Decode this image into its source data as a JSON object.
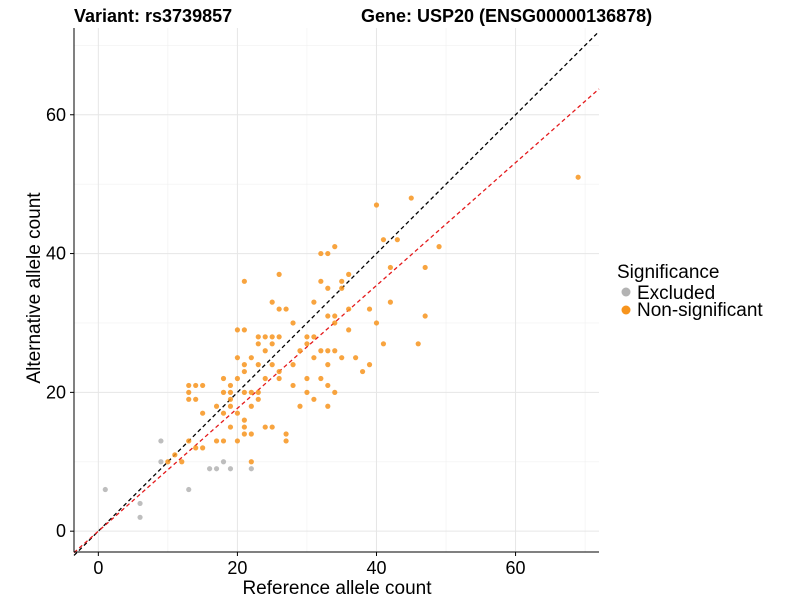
{
  "chart_data": {
    "type": "scatter",
    "title_left": "Variant: rs3739857",
    "title_right": "Gene: USP20 (ENSG00000136878)",
    "xlabel": "Reference allele count",
    "ylabel": "Alternative allele count",
    "xlim": [
      -3.5,
      72
    ],
    "ylim": [
      -3,
      72.5
    ],
    "x_ticks": [
      0,
      20,
      40,
      60
    ],
    "y_ticks": [
      0,
      20,
      40,
      60
    ],
    "grid": true,
    "legend": {
      "title": "Significance",
      "position": "right",
      "entries": [
        {
          "label": "Excluded",
          "color": "#b3b3b3"
        },
        {
          "label": "Non-significant",
          "color": "#f7941d"
        }
      ]
    },
    "reference_lines": [
      {
        "name": "identity",
        "slope": 1.0,
        "intercept": 0,
        "color": "#000000",
        "dash": true
      },
      {
        "name": "fit",
        "slope": 0.885,
        "intercept": 0,
        "color": "#e41a1c",
        "dash": true
      }
    ],
    "series": [
      {
        "name": "Excluded",
        "color": "#b3b3b3",
        "points": [
          [
            1,
            6
          ],
          [
            6,
            4
          ],
          [
            6,
            2
          ],
          [
            9,
            13
          ],
          [
            9,
            10
          ],
          [
            13,
            6
          ],
          [
            16,
            9
          ],
          [
            17,
            9
          ],
          [
            18,
            10
          ],
          [
            19,
            9
          ],
          [
            22,
            9
          ]
        ]
      },
      {
        "name": "Non-significant",
        "color": "#f7941d",
        "points": [
          [
            10,
            10
          ],
          [
            11,
            11
          ],
          [
            12,
            10
          ],
          [
            13,
            21
          ],
          [
            13,
            20
          ],
          [
            13,
            19
          ],
          [
            13,
            13
          ],
          [
            14,
            21
          ],
          [
            14,
            19
          ],
          [
            14,
            12
          ],
          [
            15,
            21
          ],
          [
            15,
            17
          ],
          [
            15,
            12
          ],
          [
            17,
            13
          ],
          [
            17,
            18
          ],
          [
            18,
            22
          ],
          [
            18,
            20
          ],
          [
            18,
            17
          ],
          [
            18,
            13
          ],
          [
            19,
            21
          ],
          [
            19,
            20
          ],
          [
            19,
            19
          ],
          [
            19,
            18
          ],
          [
            19,
            15
          ],
          [
            20,
            29
          ],
          [
            20,
            25
          ],
          [
            20,
            22
          ],
          [
            20,
            17
          ],
          [
            20,
            13
          ],
          [
            21,
            29
          ],
          [
            21,
            24
          ],
          [
            21,
            23
          ],
          [
            21,
            20
          ],
          [
            21,
            16
          ],
          [
            21,
            15
          ],
          [
            21,
            14
          ],
          [
            21,
            36
          ],
          [
            22,
            25
          ],
          [
            22,
            20
          ],
          [
            22,
            18
          ],
          [
            22,
            14
          ],
          [
            22,
            10
          ],
          [
            23,
            28
          ],
          [
            23,
            27
          ],
          [
            23,
            24
          ],
          [
            23,
            20
          ],
          [
            23,
            19
          ],
          [
            24,
            28
          ],
          [
            24,
            26
          ],
          [
            24,
            22
          ],
          [
            24,
            15
          ],
          [
            25,
            33
          ],
          [
            25,
            28
          ],
          [
            25,
            27
          ],
          [
            25,
            24
          ],
          [
            25,
            15
          ],
          [
            26,
            37
          ],
          [
            26,
            32
          ],
          [
            26,
            28
          ],
          [
            26,
            23
          ],
          [
            26,
            22
          ],
          [
            27,
            32
          ],
          [
            27,
            14
          ],
          [
            27,
            13
          ],
          [
            28,
            30
          ],
          [
            28,
            24
          ],
          [
            28,
            21
          ],
          [
            29,
            26
          ],
          [
            29,
            18
          ],
          [
            30,
            28
          ],
          [
            30,
            27
          ],
          [
            30,
            20
          ],
          [
            30,
            22
          ],
          [
            31,
            33
          ],
          [
            31,
            28
          ],
          [
            31,
            25
          ],
          [
            31,
            19
          ],
          [
            32,
            40
          ],
          [
            32,
            36
          ],
          [
            32,
            26
          ],
          [
            32,
            22
          ],
          [
            33,
            40
          ],
          [
            33,
            35
          ],
          [
            33,
            31
          ],
          [
            33,
            26
          ],
          [
            33,
            24
          ],
          [
            33,
            21
          ],
          [
            33,
            18
          ],
          [
            34,
            41
          ],
          [
            34,
            31
          ],
          [
            34,
            30
          ],
          [
            34,
            26
          ],
          [
            34,
            20
          ],
          [
            35,
            36
          ],
          [
            35,
            35
          ],
          [
            35,
            25
          ],
          [
            36,
            37
          ],
          [
            36,
            32
          ],
          [
            36,
            29
          ],
          [
            37,
            25
          ],
          [
            38,
            23
          ],
          [
            39,
            32
          ],
          [
            39,
            24
          ],
          [
            40,
            47
          ],
          [
            40,
            30
          ],
          [
            41,
            42
          ],
          [
            41,
            27
          ],
          [
            42,
            33
          ],
          [
            42,
            38
          ],
          [
            43,
            42
          ],
          [
            45,
            48
          ],
          [
            46,
            27
          ],
          [
            47,
            38
          ],
          [
            47,
            31
          ],
          [
            49,
            41
          ],
          [
            69,
            51
          ]
        ]
      }
    ]
  }
}
